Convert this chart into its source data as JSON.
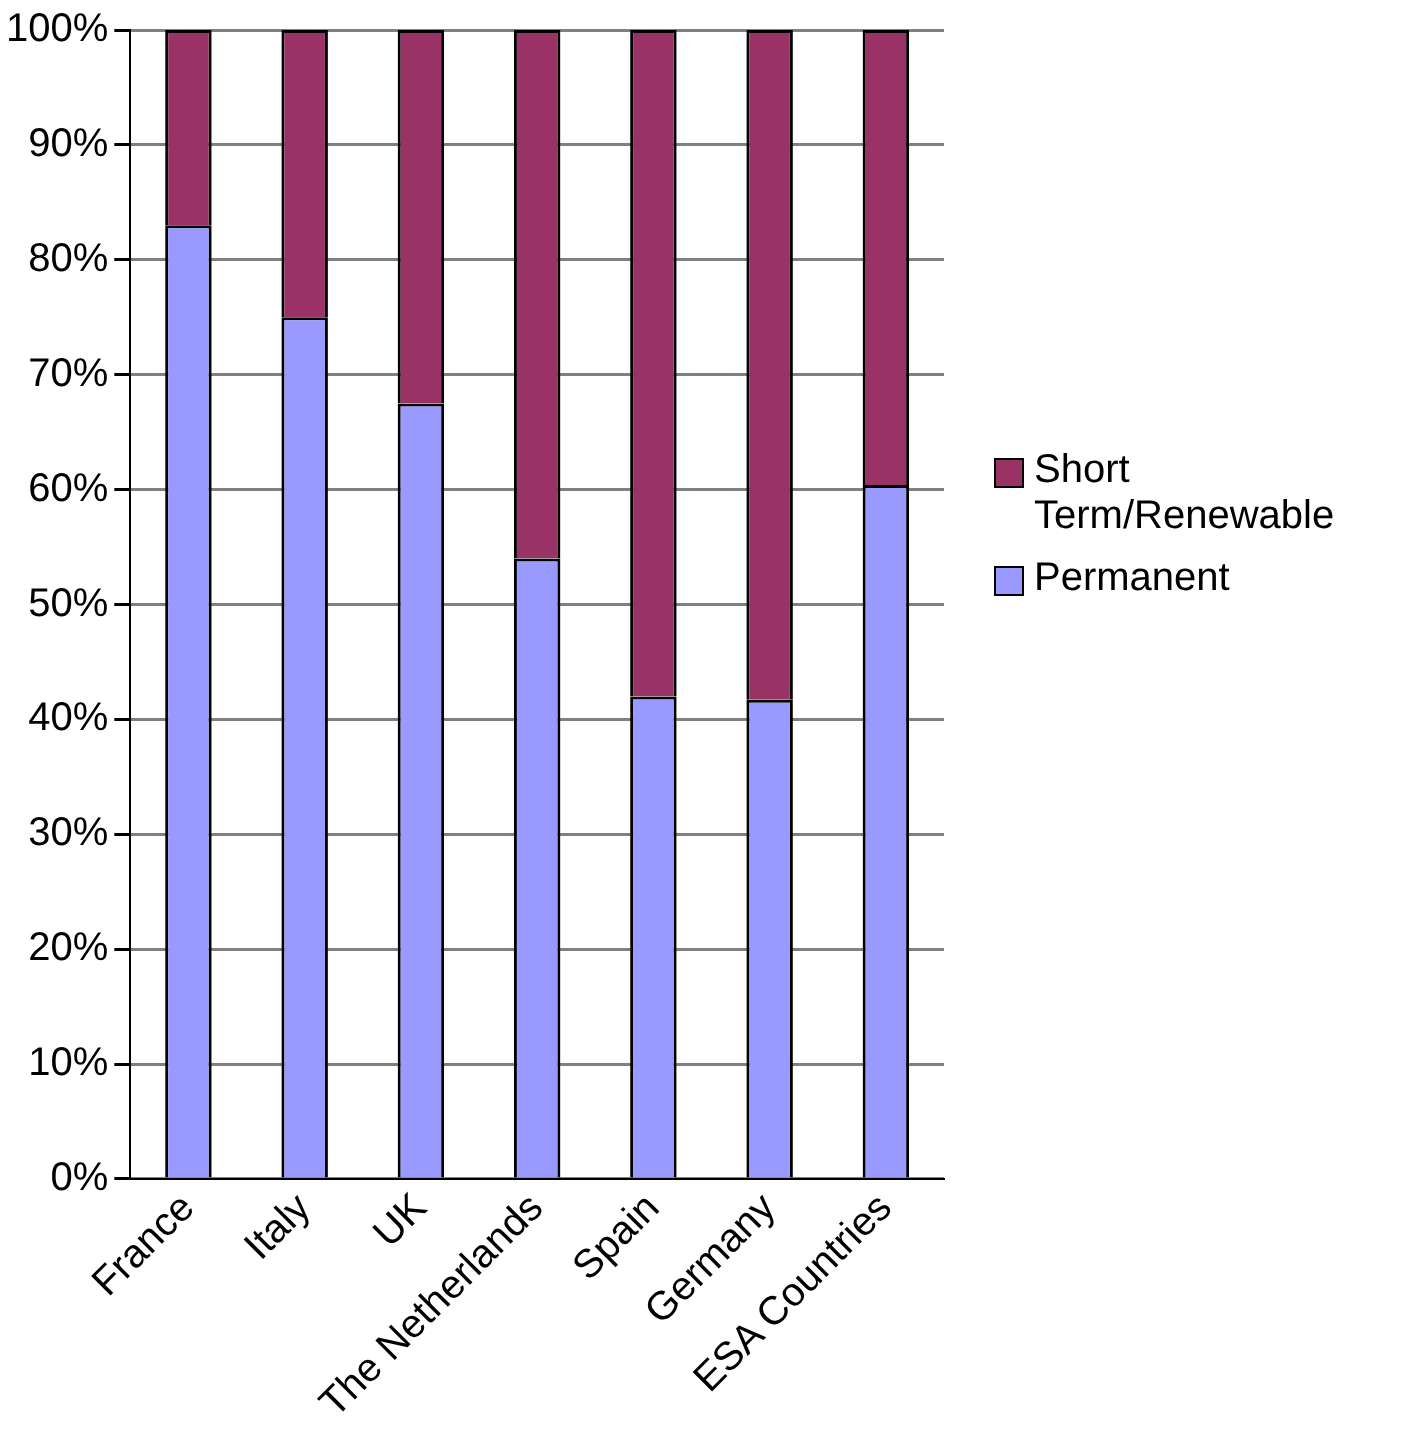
{
  "chart_data": {
    "type": "bar",
    "stacked": true,
    "categories": [
      "France",
      "Italy",
      "UK",
      "The Netherlands",
      "Spain",
      "Germany",
      "ESA Countries"
    ],
    "series": [
      {
        "name": "Permanent",
        "color": "#9999ff",
        "values": [
          83,
          75,
          67.5,
          54,
          42,
          41.7,
          60.4
        ]
      },
      {
        "name": "Short Term/Renewable",
        "color": "#993366",
        "values": [
          17,
          25,
          32.5,
          46,
          58,
          58.3,
          39.6
        ]
      }
    ],
    "ylim": [
      0,
      100
    ],
    "yticks": [
      {
        "value": 0,
        "label": "0%"
      },
      {
        "value": 10,
        "label": "10%"
      },
      {
        "value": 20,
        "label": "20%"
      },
      {
        "value": 30,
        "label": "30%"
      },
      {
        "value": 40,
        "label": "40%"
      },
      {
        "value": 50,
        "label": "50%"
      },
      {
        "value": 60,
        "label": "60%"
      },
      {
        "value": 70,
        "label": "70%"
      },
      {
        "value": 80,
        "label": "80%"
      },
      {
        "value": 90,
        "label": "90%"
      },
      {
        "value": 100,
        "label": "100%"
      }
    ],
    "grid": "y",
    "legend": "right"
  }
}
